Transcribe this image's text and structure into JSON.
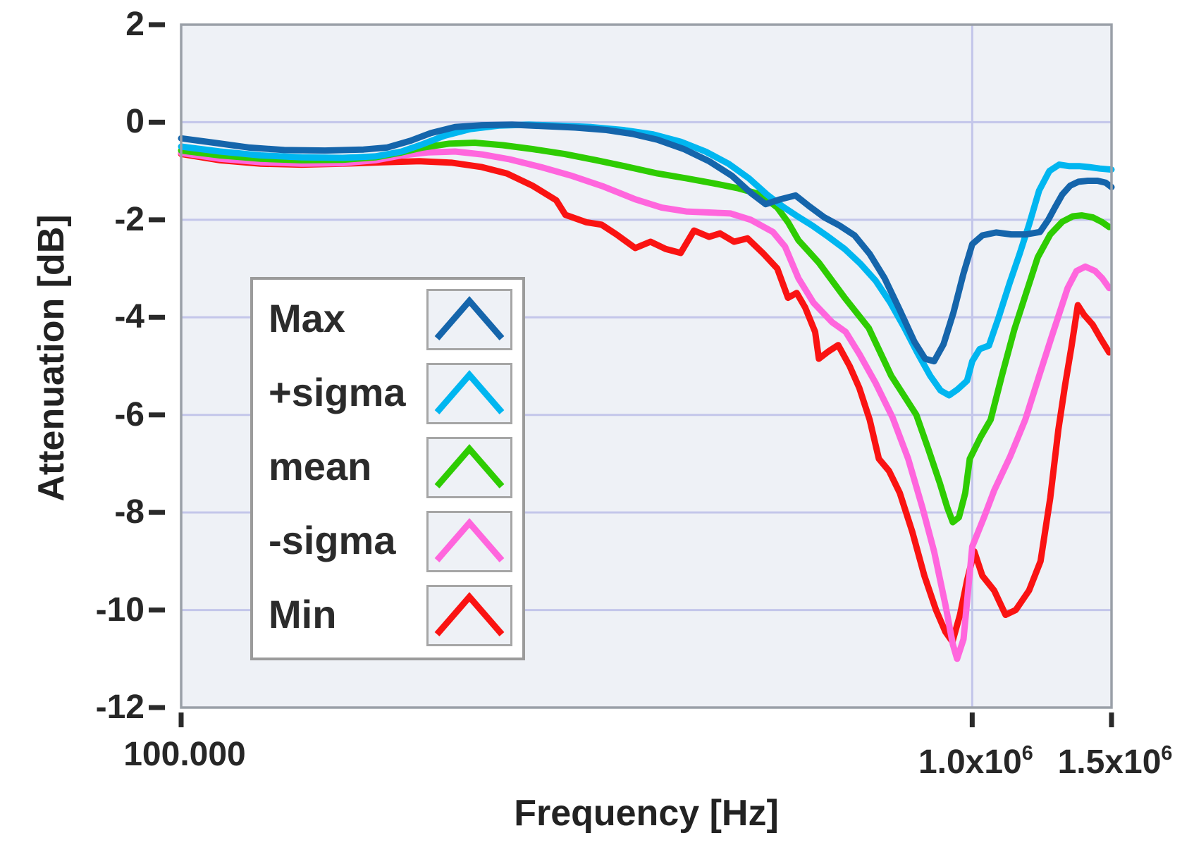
{
  "figure": {
    "x_axis_title": "Frequency [Hz]",
    "y_axis_title": "Attenuation [dB]"
  },
  "chart_data": {
    "type": "line",
    "title": "",
    "xlabel": "Frequency [Hz]",
    "ylabel": "Attenuation [dB]",
    "x_scale": "log",
    "x_range_hz": [
      100000,
      1500000
    ],
    "ylim": [
      -12,
      2
    ],
    "grid": {
      "horizontal_at_db": [
        0,
        -2,
        -4,
        -6,
        -8,
        -10
      ],
      "vertical_at_khz": [
        1000
      ],
      "color": "#c3c6ea"
    },
    "plot_bg_color": "#eef1f6",
    "plot_border_color": "#9aa0a8",
    "legend_position": "middle-left",
    "y_ticks": [
      {
        "value": 2,
        "label": "2"
      },
      {
        "value": 0,
        "label": "0"
      },
      {
        "value": -2,
        "label": "-2"
      },
      {
        "value": -4,
        "label": "-4"
      },
      {
        "value": -6,
        "label": "-6"
      },
      {
        "value": -8,
        "label": "-8"
      },
      {
        "value": -10,
        "label": "-10"
      },
      {
        "value": -12,
        "label": "-12"
      }
    ],
    "x_ticks": [
      {
        "khz": 100,
        "base": "100.000",
        "sup": ""
      },
      {
        "khz": 1000,
        "base": "1.0x10",
        "sup": "6"
      },
      {
        "khz": 1500,
        "base": "1.5x10",
        "sup": "6"
      }
    ],
    "series": [
      {
        "key": "min",
        "label": "Min",
        "color": "#fa1312",
        "points_khz_db": [
          [
            100,
            -0.65
          ],
          [
            112,
            -0.78
          ],
          [
            126,
            -0.85
          ],
          [
            142,
            -0.87
          ],
          [
            160,
            -0.85
          ],
          [
            180,
            -0.82
          ],
          [
            200,
            -0.8
          ],
          [
            220,
            -0.83
          ],
          [
            240,
            -0.92
          ],
          [
            258,
            -1.05
          ],
          [
            278,
            -1.3
          ],
          [
            298,
            -1.6
          ],
          [
            306,
            -1.9
          ],
          [
            325,
            -2.05
          ],
          [
            340,
            -2.1
          ],
          [
            355,
            -2.3
          ],
          [
            375,
            -2.58
          ],
          [
            392,
            -2.45
          ],
          [
            410,
            -2.6
          ],
          [
            428,
            -2.68
          ],
          [
            445,
            -2.22
          ],
          [
            465,
            -2.35
          ],
          [
            480,
            -2.28
          ],
          [
            500,
            -2.45
          ],
          [
            520,
            -2.38
          ],
          [
            545,
            -2.7
          ],
          [
            567,
            -3.0
          ],
          [
            585,
            -3.6
          ],
          [
            600,
            -3.5
          ],
          [
            615,
            -3.8
          ],
          [
            633,
            -4.3
          ],
          [
            640,
            -4.85
          ],
          [
            658,
            -4.7
          ],
          [
            677,
            -4.57
          ],
          [
            700,
            -5.0
          ],
          [
            720,
            -5.45
          ],
          [
            742,
            -6.1
          ],
          [
            762,
            -6.9
          ],
          [
            785,
            -7.15
          ],
          [
            810,
            -7.6
          ],
          [
            840,
            -8.4
          ],
          [
            870,
            -9.3
          ],
          [
            900,
            -10.0
          ],
          [
            925,
            -10.45
          ],
          [
            944,
            -10.65
          ],
          [
            965,
            -10.1
          ],
          [
            985,
            -9.4
          ],
          [
            1006,
            -8.8
          ],
          [
            1030,
            -9.3
          ],
          [
            1066,
            -9.6
          ],
          [
            1102,
            -10.1
          ],
          [
            1135,
            -10.0
          ],
          [
            1180,
            -9.6
          ],
          [
            1220,
            -9.0
          ],
          [
            1255,
            -7.7
          ],
          [
            1285,
            -6.3
          ],
          [
            1310,
            -5.4
          ],
          [
            1335,
            -4.6
          ],
          [
            1360,
            -3.75
          ],
          [
            1385,
            -3.95
          ],
          [
            1420,
            -4.15
          ],
          [
            1455,
            -4.45
          ],
          [
            1490,
            -4.72
          ]
        ]
      },
      {
        "key": "minus_sigma",
        "label": "-sigma",
        "color": "#ff66dd",
        "points_khz_db": [
          [
            100,
            -0.63
          ],
          [
            112,
            -0.75
          ],
          [
            126,
            -0.82
          ],
          [
            142,
            -0.85
          ],
          [
            160,
            -0.84
          ],
          [
            176,
            -0.78
          ],
          [
            190,
            -0.68
          ],
          [
            205,
            -0.62
          ],
          [
            222,
            -0.6
          ],
          [
            240,
            -0.66
          ],
          [
            260,
            -0.76
          ],
          [
            285,
            -0.92
          ],
          [
            312,
            -1.1
          ],
          [
            342,
            -1.32
          ],
          [
            375,
            -1.58
          ],
          [
            405,
            -1.75
          ],
          [
            435,
            -1.83
          ],
          [
            465,
            -1.85
          ],
          [
            495,
            -1.87
          ],
          [
            525,
            -2.0
          ],
          [
            560,
            -2.25
          ],
          [
            580,
            -2.55
          ],
          [
            603,
            -3.2
          ],
          [
            630,
            -3.7
          ],
          [
            665,
            -4.1
          ],
          [
            692,
            -4.3
          ],
          [
            720,
            -4.75
          ],
          [
            755,
            -5.35
          ],
          [
            793,
            -6.05
          ],
          [
            830,
            -6.9
          ],
          [
            865,
            -7.9
          ],
          [
            895,
            -8.8
          ],
          [
            925,
            -9.9
          ],
          [
            945,
            -10.7
          ],
          [
            957,
            -11.0
          ],
          [
            975,
            -10.6
          ],
          [
            1000,
            -8.7
          ],
          [
            1035,
            -8.1
          ],
          [
            1066,
            -7.55
          ],
          [
            1117,
            -6.85
          ],
          [
            1167,
            -6.1
          ],
          [
            1215,
            -5.2
          ],
          [
            1260,
            -4.4
          ],
          [
            1320,
            -3.4
          ],
          [
            1355,
            -3.05
          ],
          [
            1390,
            -2.96
          ],
          [
            1430,
            -3.05
          ],
          [
            1460,
            -3.2
          ],
          [
            1490,
            -3.4
          ]
        ]
      },
      {
        "key": "mean",
        "label": "mean",
        "color": "#2ecc02",
        "points_khz_db": [
          [
            100,
            -0.58
          ],
          [
            112,
            -0.68
          ],
          [
            126,
            -0.75
          ],
          [
            142,
            -0.78
          ],
          [
            160,
            -0.77
          ],
          [
            176,
            -0.72
          ],
          [
            190,
            -0.62
          ],
          [
            202,
            -0.52
          ],
          [
            218,
            -0.44
          ],
          [
            235,
            -0.42
          ],
          [
            255,
            -0.47
          ],
          [
            278,
            -0.55
          ],
          [
            305,
            -0.65
          ],
          [
            335,
            -0.78
          ],
          [
            368,
            -0.92
          ],
          [
            400,
            -1.05
          ],
          [
            435,
            -1.15
          ],
          [
            470,
            -1.25
          ],
          [
            505,
            -1.35
          ],
          [
            540,
            -1.48
          ],
          [
            567,
            -1.75
          ],
          [
            585,
            -2.05
          ],
          [
            603,
            -2.42
          ],
          [
            640,
            -2.88
          ],
          [
            690,
            -3.6
          ],
          [
            740,
            -4.22
          ],
          [
            790,
            -5.2
          ],
          [
            850,
            -6.0
          ],
          [
            880,
            -6.7
          ],
          [
            910,
            -7.4
          ],
          [
            930,
            -7.9
          ],
          [
            945,
            -8.2
          ],
          [
            962,
            -8.1
          ],
          [
            980,
            -7.6
          ],
          [
            993,
            -6.9
          ],
          [
            1025,
            -6.45
          ],
          [
            1055,
            -6.1
          ],
          [
            1090,
            -5.2
          ],
          [
            1130,
            -4.26
          ],
          [
            1170,
            -3.5
          ],
          [
            1210,
            -2.77
          ],
          [
            1255,
            -2.3
          ],
          [
            1300,
            -2.04
          ],
          [
            1340,
            -1.93
          ],
          [
            1375,
            -1.91
          ],
          [
            1420,
            -1.95
          ],
          [
            1460,
            -2.05
          ],
          [
            1490,
            -2.15
          ]
        ]
      },
      {
        "key": "plus_sigma",
        "label": "+sigma",
        "color": "#00b6f0",
        "points_khz_db": [
          [
            100,
            -0.5
          ],
          [
            112,
            -0.6
          ],
          [
            126,
            -0.68
          ],
          [
            142,
            -0.72
          ],
          [
            160,
            -0.73
          ],
          [
            176,
            -0.7
          ],
          [
            190,
            -0.6
          ],
          [
            202,
            -0.45
          ],
          [
            215,
            -0.28
          ],
          [
            232,
            -0.14
          ],
          [
            252,
            -0.07
          ],
          [
            275,
            -0.05
          ],
          [
            300,
            -0.07
          ],
          [
            330,
            -0.1
          ],
          [
            362,
            -0.16
          ],
          [
            395,
            -0.25
          ],
          [
            428,
            -0.4
          ],
          [
            460,
            -0.6
          ],
          [
            492,
            -0.85
          ],
          [
            522,
            -1.15
          ],
          [
            550,
            -1.48
          ],
          [
            575,
            -1.72
          ],
          [
            600,
            -1.92
          ],
          [
            628,
            -2.12
          ],
          [
            658,
            -2.35
          ],
          [
            690,
            -2.6
          ],
          [
            722,
            -2.9
          ],
          [
            755,
            -3.25
          ],
          [
            788,
            -3.7
          ],
          [
            820,
            -4.2
          ],
          [
            852,
            -4.72
          ],
          [
            885,
            -5.2
          ],
          [
            912,
            -5.5
          ],
          [
            935,
            -5.6
          ],
          [
            958,
            -5.48
          ],
          [
            985,
            -5.3
          ],
          [
            1000,
            -4.9
          ],
          [
            1022,
            -4.65
          ],
          [
            1050,
            -4.58
          ],
          [
            1080,
            -4.0
          ],
          [
            1115,
            -3.3
          ],
          [
            1148,
            -2.7
          ],
          [
            1180,
            -2.1
          ],
          [
            1215,
            -1.4
          ],
          [
            1252,
            -1.0
          ],
          [
            1288,
            -0.87
          ],
          [
            1325,
            -0.9
          ],
          [
            1365,
            -0.9
          ],
          [
            1405,
            -0.92
          ],
          [
            1450,
            -0.95
          ],
          [
            1500,
            -0.97
          ]
        ]
      },
      {
        "key": "max",
        "label": "Max",
        "color": "#1565ab",
        "points_khz_db": [
          [
            100,
            -0.33
          ],
          [
            110,
            -0.42
          ],
          [
            122,
            -0.52
          ],
          [
            135,
            -0.57
          ],
          [
            152,
            -0.58
          ],
          [
            170,
            -0.56
          ],
          [
            182,
            -0.52
          ],
          [
            195,
            -0.38
          ],
          [
            207,
            -0.22
          ],
          [
            222,
            -0.1
          ],
          [
            240,
            -0.06
          ],
          [
            262,
            -0.05
          ],
          [
            288,
            -0.08
          ],
          [
            315,
            -0.11
          ],
          [
            345,
            -0.16
          ],
          [
            372,
            -0.24
          ],
          [
            400,
            -0.36
          ],
          [
            432,
            -0.55
          ],
          [
            465,
            -0.8
          ],
          [
            497,
            -1.1
          ],
          [
            525,
            -1.45
          ],
          [
            548,
            -1.68
          ],
          [
            572,
            -1.58
          ],
          [
            598,
            -1.5
          ],
          [
            622,
            -1.72
          ],
          [
            650,
            -1.95
          ],
          [
            680,
            -2.12
          ],
          [
            710,
            -2.32
          ],
          [
            742,
            -2.7
          ],
          [
            775,
            -3.2
          ],
          [
            810,
            -3.85
          ],
          [
            845,
            -4.5
          ],
          [
            872,
            -4.85
          ],
          [
            895,
            -4.9
          ],
          [
            920,
            -4.55
          ],
          [
            947,
            -3.9
          ],
          [
            975,
            -3.1
          ],
          [
            1000,
            -2.5
          ],
          [
            1030,
            -2.32
          ],
          [
            1072,
            -2.26
          ],
          [
            1120,
            -2.3
          ],
          [
            1170,
            -2.3
          ],
          [
            1218,
            -2.25
          ],
          [
            1248,
            -2.0
          ],
          [
            1272,
            -1.75
          ],
          [
            1300,
            -1.48
          ],
          [
            1330,
            -1.3
          ],
          [
            1362,
            -1.22
          ],
          [
            1400,
            -1.2
          ],
          [
            1440,
            -1.2
          ],
          [
            1475,
            -1.24
          ],
          [
            1500,
            -1.33
          ]
        ]
      }
    ],
    "legend_order": [
      "max",
      "plus_sigma",
      "mean",
      "minus_sigma",
      "min"
    ]
  }
}
